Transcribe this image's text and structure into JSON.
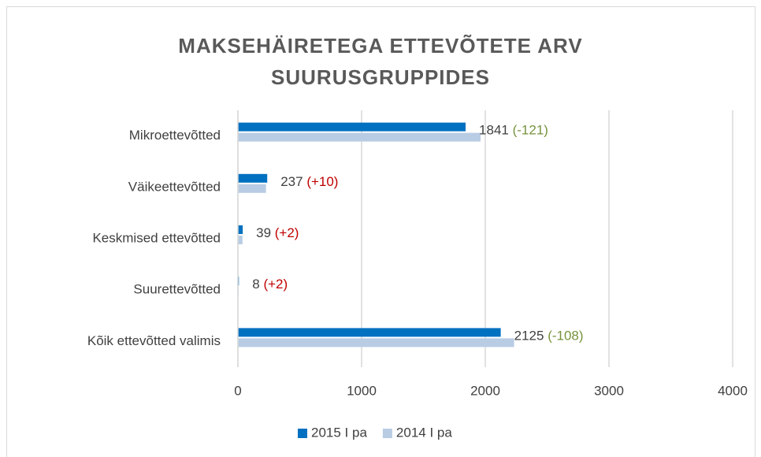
{
  "chart_data": {
    "type": "bar",
    "orientation": "horizontal",
    "title": "MAKSEHÄIRETEGA ETTEVÕTETE ARV SUURUSGRUPPIDES",
    "categories": [
      "Mikroettevõtted",
      "Väikeettevõtted",
      "Keskmised ettevõtted",
      "Suurettevõtted",
      "Kõik ettevõtted valimis"
    ],
    "series": [
      {
        "name": "2015 I pa",
        "color": "#0070c0",
        "values": [
          1841,
          237,
          39,
          8,
          2125
        ]
      },
      {
        "name": "2014 I pa",
        "color": "#b8cce4",
        "values": [
          1962,
          227,
          37,
          6,
          2233
        ]
      }
    ],
    "changes": [
      "(-121)",
      "(+10)",
      "(+2)",
      "(+2)",
      "(-108)"
    ],
    "change_colors": [
      "#77933c",
      "#c00000",
      "#c00000",
      "#c00000",
      "#77933c"
    ],
    "xlim": [
      0,
      4000
    ],
    "xticks": [
      0,
      1000,
      2000,
      3000,
      4000
    ],
    "grid": true,
    "legend": "bottom"
  }
}
